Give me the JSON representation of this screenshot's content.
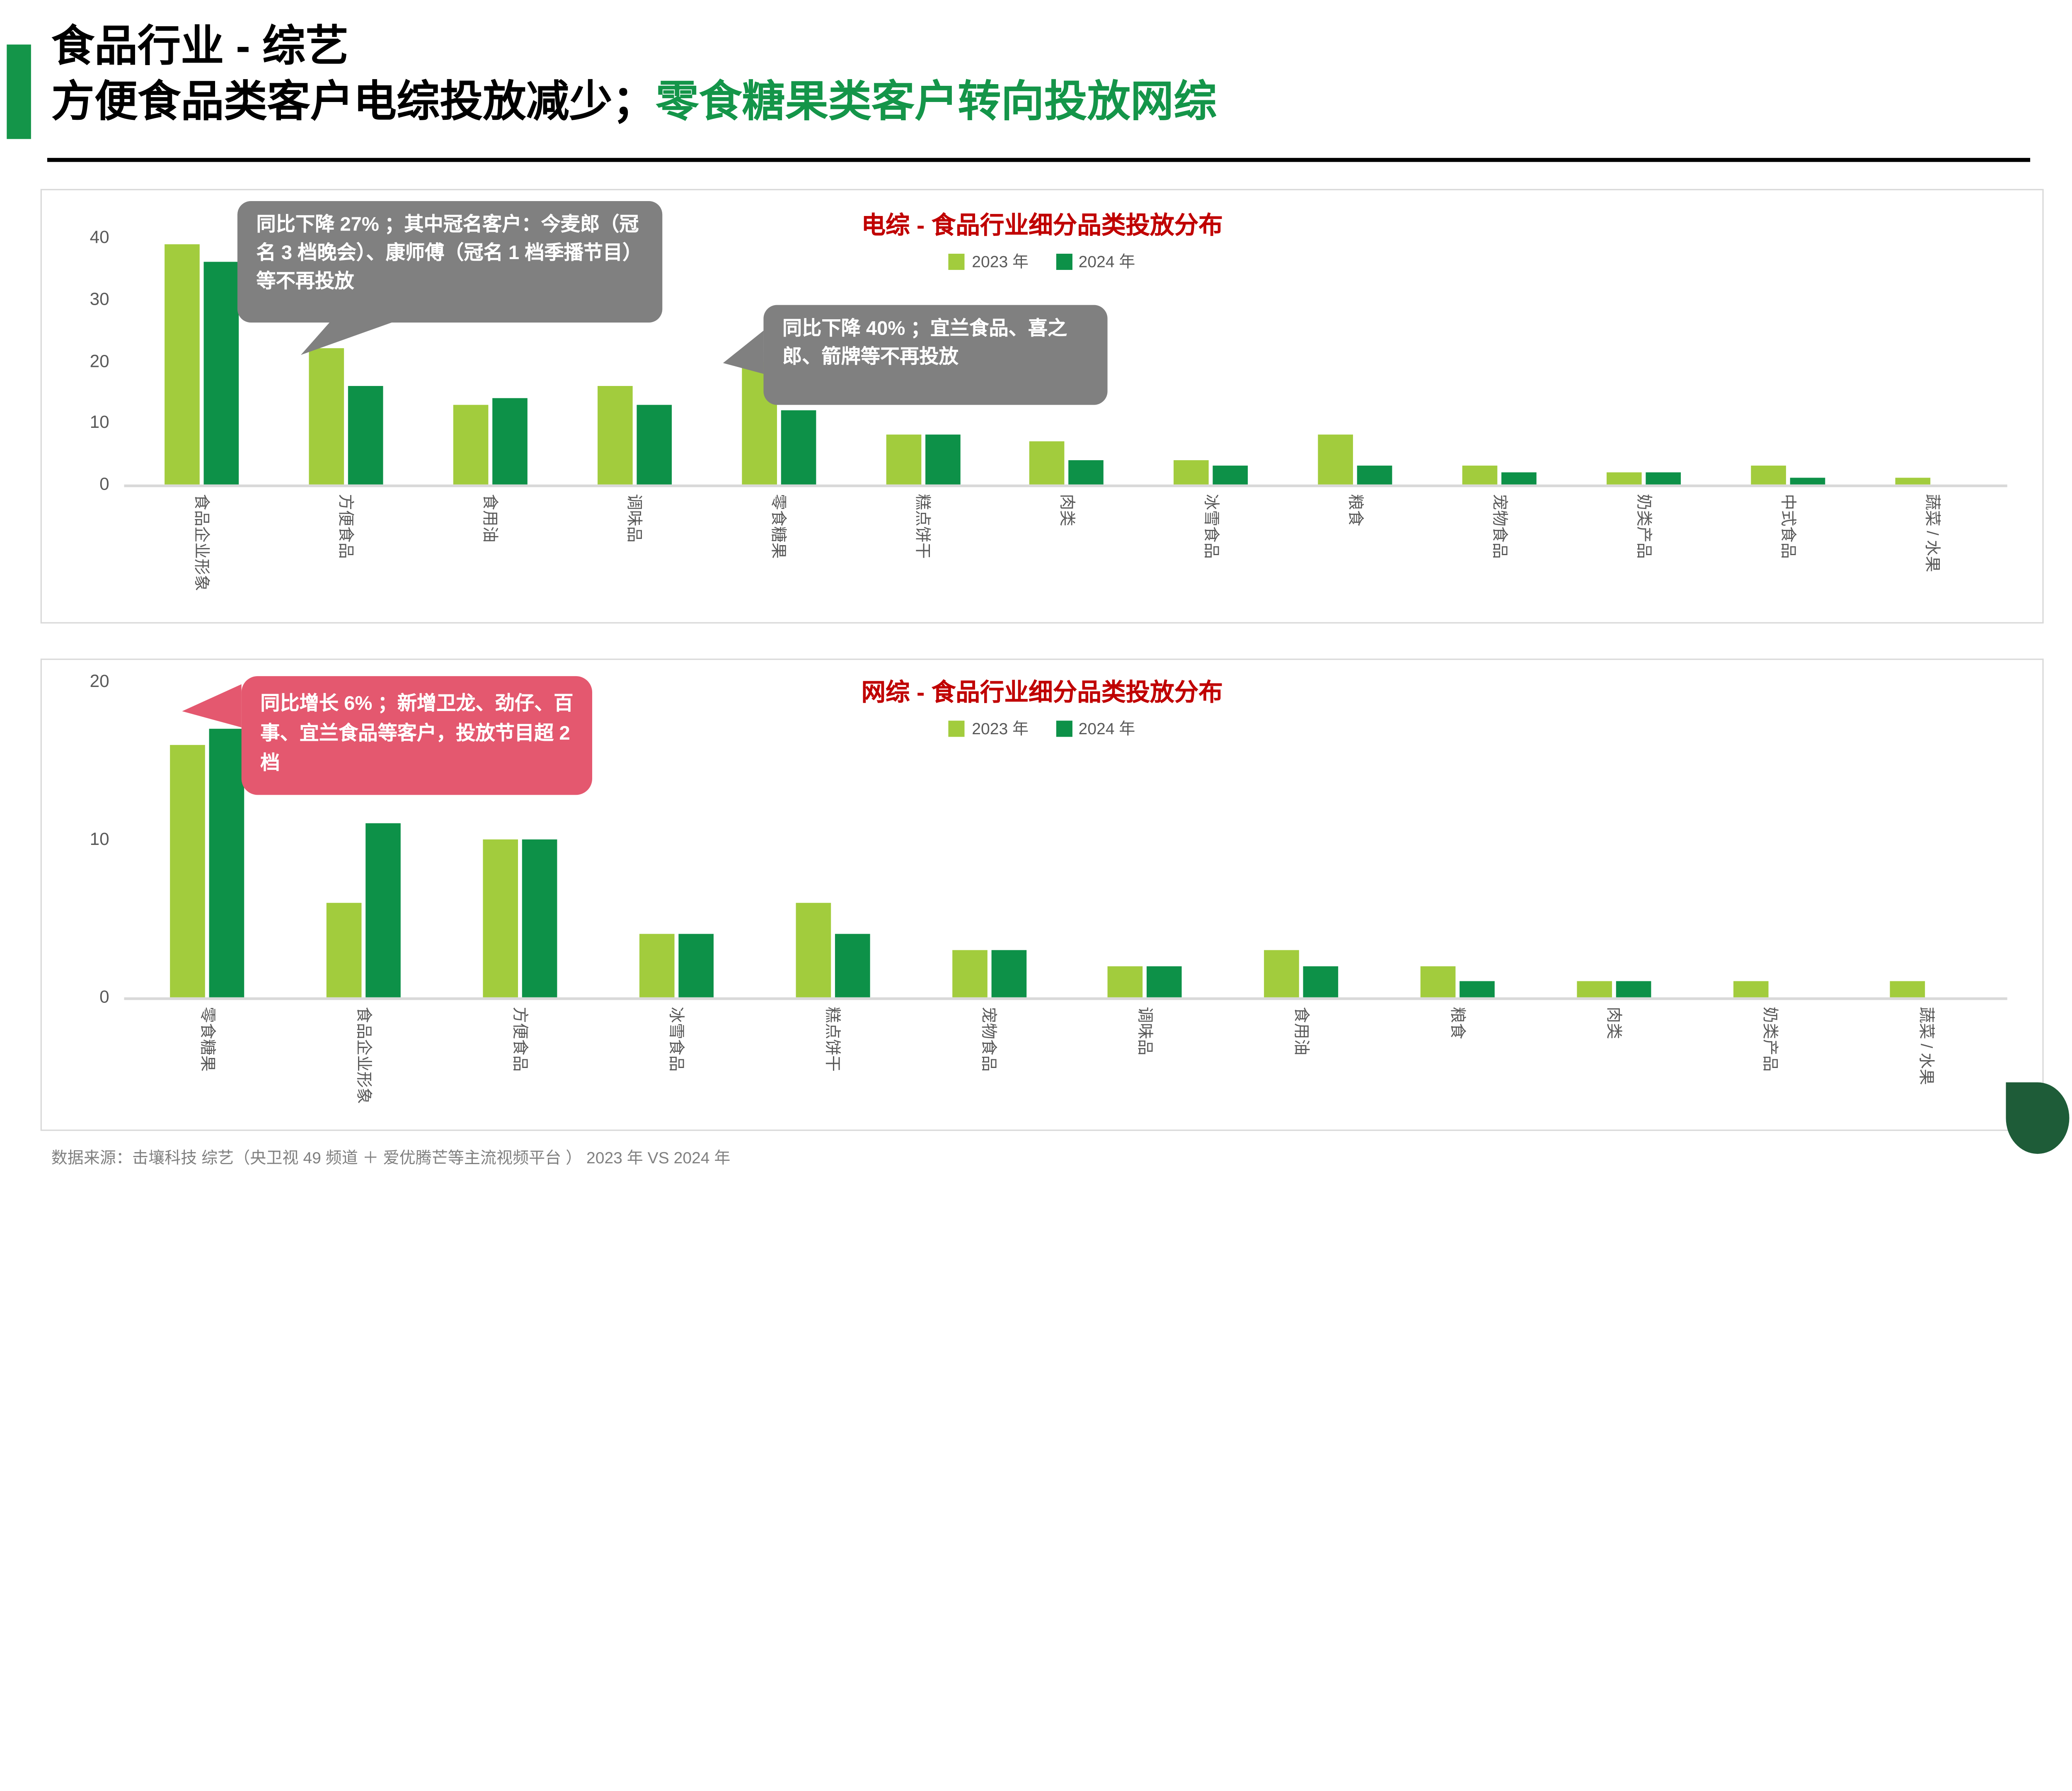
{
  "page": {
    "header": {
      "title_line1": "食品行业 - 综艺",
      "subtitle_black": "方便食品类客户电综投放减少；",
      "subtitle_green": "零食糖果类客户转向投放网综"
    },
    "footer": {
      "source": "数据来源：击壤科技 综艺（央卫视 49 频道 ＋ 爱优腾芒等主流视频平台 ）  2023 年  VS 2024 年"
    },
    "colors": {
      "accent_green": "#149549",
      "series_2023": "#a2cc3d",
      "series_2024": "#0d9148",
      "chart_title_red": "#c00000",
      "callout_gray": "#808080",
      "callout_pink": "#e4586f",
      "axis_text": "#595959",
      "logo_green": "#1e5c38"
    }
  },
  "chart_data": [
    {
      "type": "bar",
      "title": "电综 - 食品行业细分品类投放分布",
      "xlabel": "",
      "ylabel": "",
      "ylim": [
        0,
        40
      ],
      "yticks": [
        0,
        10,
        20,
        30,
        40
      ],
      "grid": false,
      "legend_position": "top",
      "categories": [
        "食品企业形象",
        "方便食品",
        "食用油",
        "调味品",
        "零食糖果",
        "糕点饼干",
        "肉类",
        "冰雪食品",
        "粮食",
        "宠物食品",
        "奶类产品",
        "中式食品",
        "蔬菜 / 水果"
      ],
      "series": [
        {
          "name": "2023 年",
          "color": "#a2cc3d",
          "values": [
            39,
            22,
            13,
            16,
            20,
            8,
            7,
            4,
            8,
            3,
            2,
            3,
            1
          ]
        },
        {
          "name": "2024 年",
          "color": "#0d9148",
          "values": [
            36,
            16,
            14,
            13,
            12,
            8,
            4,
            3,
            3,
            2,
            2,
            1,
            0
          ]
        }
      ],
      "callouts": [
        {
          "text": "同比下降 27% ；其中冠名客户：今麦郎（冠名 3 档晚会）、康师傅（冠名 1 档季播节目）等不再投放"
        },
        {
          "text": "同比下降 40% ；宜兰食品、喜之郎、箭牌等不再投放"
        }
      ]
    },
    {
      "type": "bar",
      "title": "网综 - 食品行业细分品类投放分布",
      "xlabel": "",
      "ylabel": "",
      "ylim": [
        0,
        20
      ],
      "yticks": [
        0,
        10,
        20
      ],
      "grid": false,
      "legend_position": "top",
      "categories": [
        "零食糖果",
        "食品企业形象",
        "方便食品",
        "冰雪食品",
        "糕点饼干",
        "宠物食品",
        "调味品",
        "食用油",
        "粮食",
        "肉类",
        "奶类产品",
        "蔬菜 / 水果"
      ],
      "series": [
        {
          "name": "2023 年",
          "color": "#a2cc3d",
          "values": [
            16,
            6,
            10,
            4,
            6,
            3,
            2,
            3,
            2,
            1,
            1,
            1
          ]
        },
        {
          "name": "2024 年",
          "color": "#0d9148",
          "values": [
            17,
            11,
            10,
            4,
            4,
            3,
            2,
            2,
            1,
            1,
            0,
            0
          ]
        }
      ],
      "callouts": [
        {
          "text": "同比增长 6% ；新增卫龙、劲仔、百事、宜兰食品等客户，投放节目超 2 档"
        }
      ]
    }
  ]
}
